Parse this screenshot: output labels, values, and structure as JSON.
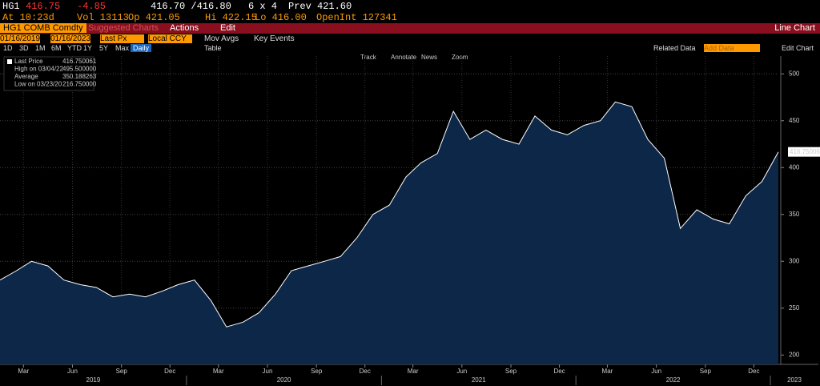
{
  "header": {
    "ticker": "HG1",
    "last": "416.75",
    "change": "-4.85",
    "bid_ask": "416.70 /416.80",
    "size": "6 x 4",
    "prev": "Prev 421.60",
    "time": "At 10:23d",
    "vol": "Vol 13113",
    "open": "Op 421.05",
    "high": "Hi 422.15",
    "low": "Lo 416.00",
    "open_int": "OpenInt 127341"
  },
  "menu": {
    "security": "HG1 COMB Comdty",
    "suggested": "Suggested Charts",
    "actions": "Actions",
    "edit": "Edit",
    "chart_type": "Line Chart"
  },
  "settings": {
    "start": "01/16/2019",
    "end": "01/16/2023",
    "field": "Last Px",
    "currency": "Local CCY",
    "mov_avgs": "Mov Avgs",
    "key_events": "Key Events"
  },
  "toolbar": {
    "periods": [
      "1D",
      "3D",
      "1M",
      "6M",
      "YTD",
      "1Y",
      "5Y",
      "Max"
    ],
    "frequency": "Daily",
    "table": "Table",
    "related": "Related Data",
    "add": "Add Data",
    "edit_chart": "Edit Chart",
    "tools": [
      "Track",
      "Annotate",
      "News",
      "Zoom"
    ]
  },
  "legend": [
    {
      "name": "Last Price",
      "value": "416.750061"
    },
    {
      "name": "High on 03/04/22",
      "value": "495.500000"
    },
    {
      "name": "Average",
      "value": "350.188263"
    },
    {
      "name": "Low on 03/23/20",
      "value": "216.750000"
    }
  ],
  "chart_data": {
    "type": "area",
    "color": "#0d2748",
    "line_color": "#ffffff",
    "x": [
      "2019-01",
      "2019-02",
      "2019-03",
      "2019-04",
      "2019-05",
      "2019-06",
      "2019-07",
      "2019-08",
      "2019-09",
      "2019-10",
      "2019-11",
      "2019-12",
      "2020-01",
      "2020-02",
      "2020-03",
      "2020-04",
      "2020-05",
      "2020-06",
      "2020-07",
      "2020-08",
      "2020-09",
      "2020-10",
      "2020-11",
      "2020-12",
      "2021-01",
      "2021-02",
      "2021-03",
      "2021-04",
      "2021-05",
      "2021-06",
      "2021-07",
      "2021-08",
      "2021-09",
      "2021-10",
      "2021-11",
      "2021-12",
      "2022-01",
      "2022-02",
      "2022-03",
      "2022-04",
      "2022-05",
      "2022-06",
      "2022-07",
      "2022-08",
      "2022-09",
      "2022-10",
      "2022-11",
      "2022-12",
      "2023-01"
    ],
    "values": [
      280,
      290,
      300,
      295,
      280,
      275,
      272,
      262,
      265,
      262,
      268,
      275,
      280,
      258,
      230,
      235,
      245,
      265,
      290,
      295,
      300,
      305,
      325,
      350,
      360,
      390,
      405,
      415,
      460,
      430,
      440,
      430,
      425,
      455,
      440,
      435,
      445,
      450,
      470,
      465,
      430,
      410,
      335,
      355,
      345,
      340,
      370,
      385,
      416.750061
    ],
    "xlim": [
      "2019-01",
      "2023-01"
    ],
    "ylim": [
      190,
      519
    ],
    "yticks": [
      200,
      250,
      300,
      350,
      400,
      450,
      500
    ],
    "xticks": [
      {
        "value": "2019-03",
        "label": "Mar"
      },
      {
        "value": "2019-06",
        "label": "Jun"
      },
      {
        "value": "2019-09",
        "label": "Sep"
      },
      {
        "value": "2019-12",
        "label": "Dec"
      },
      {
        "value": "2020-03",
        "label": "Mar"
      },
      {
        "value": "2020-06",
        "label": "Jun"
      },
      {
        "value": "2020-09",
        "label": "Sep"
      },
      {
        "value": "2020-12",
        "label": "Dec"
      },
      {
        "value": "2021-03",
        "label": "Mar"
      },
      {
        "value": "2021-06",
        "label": "Jun"
      },
      {
        "value": "2021-09",
        "label": "Sep"
      },
      {
        "value": "2021-12",
        "label": "Dec"
      },
      {
        "value": "2022-03",
        "label": "Mar"
      },
      {
        "value": "2022-06",
        "label": "Jun"
      },
      {
        "value": "2022-09",
        "label": "Sep"
      },
      {
        "value": "2022-12",
        "label": "Dec"
      }
    ],
    "years": [
      "2019",
      "2020",
      "2021",
      "2022",
      "2023"
    ],
    "grid": true
  }
}
